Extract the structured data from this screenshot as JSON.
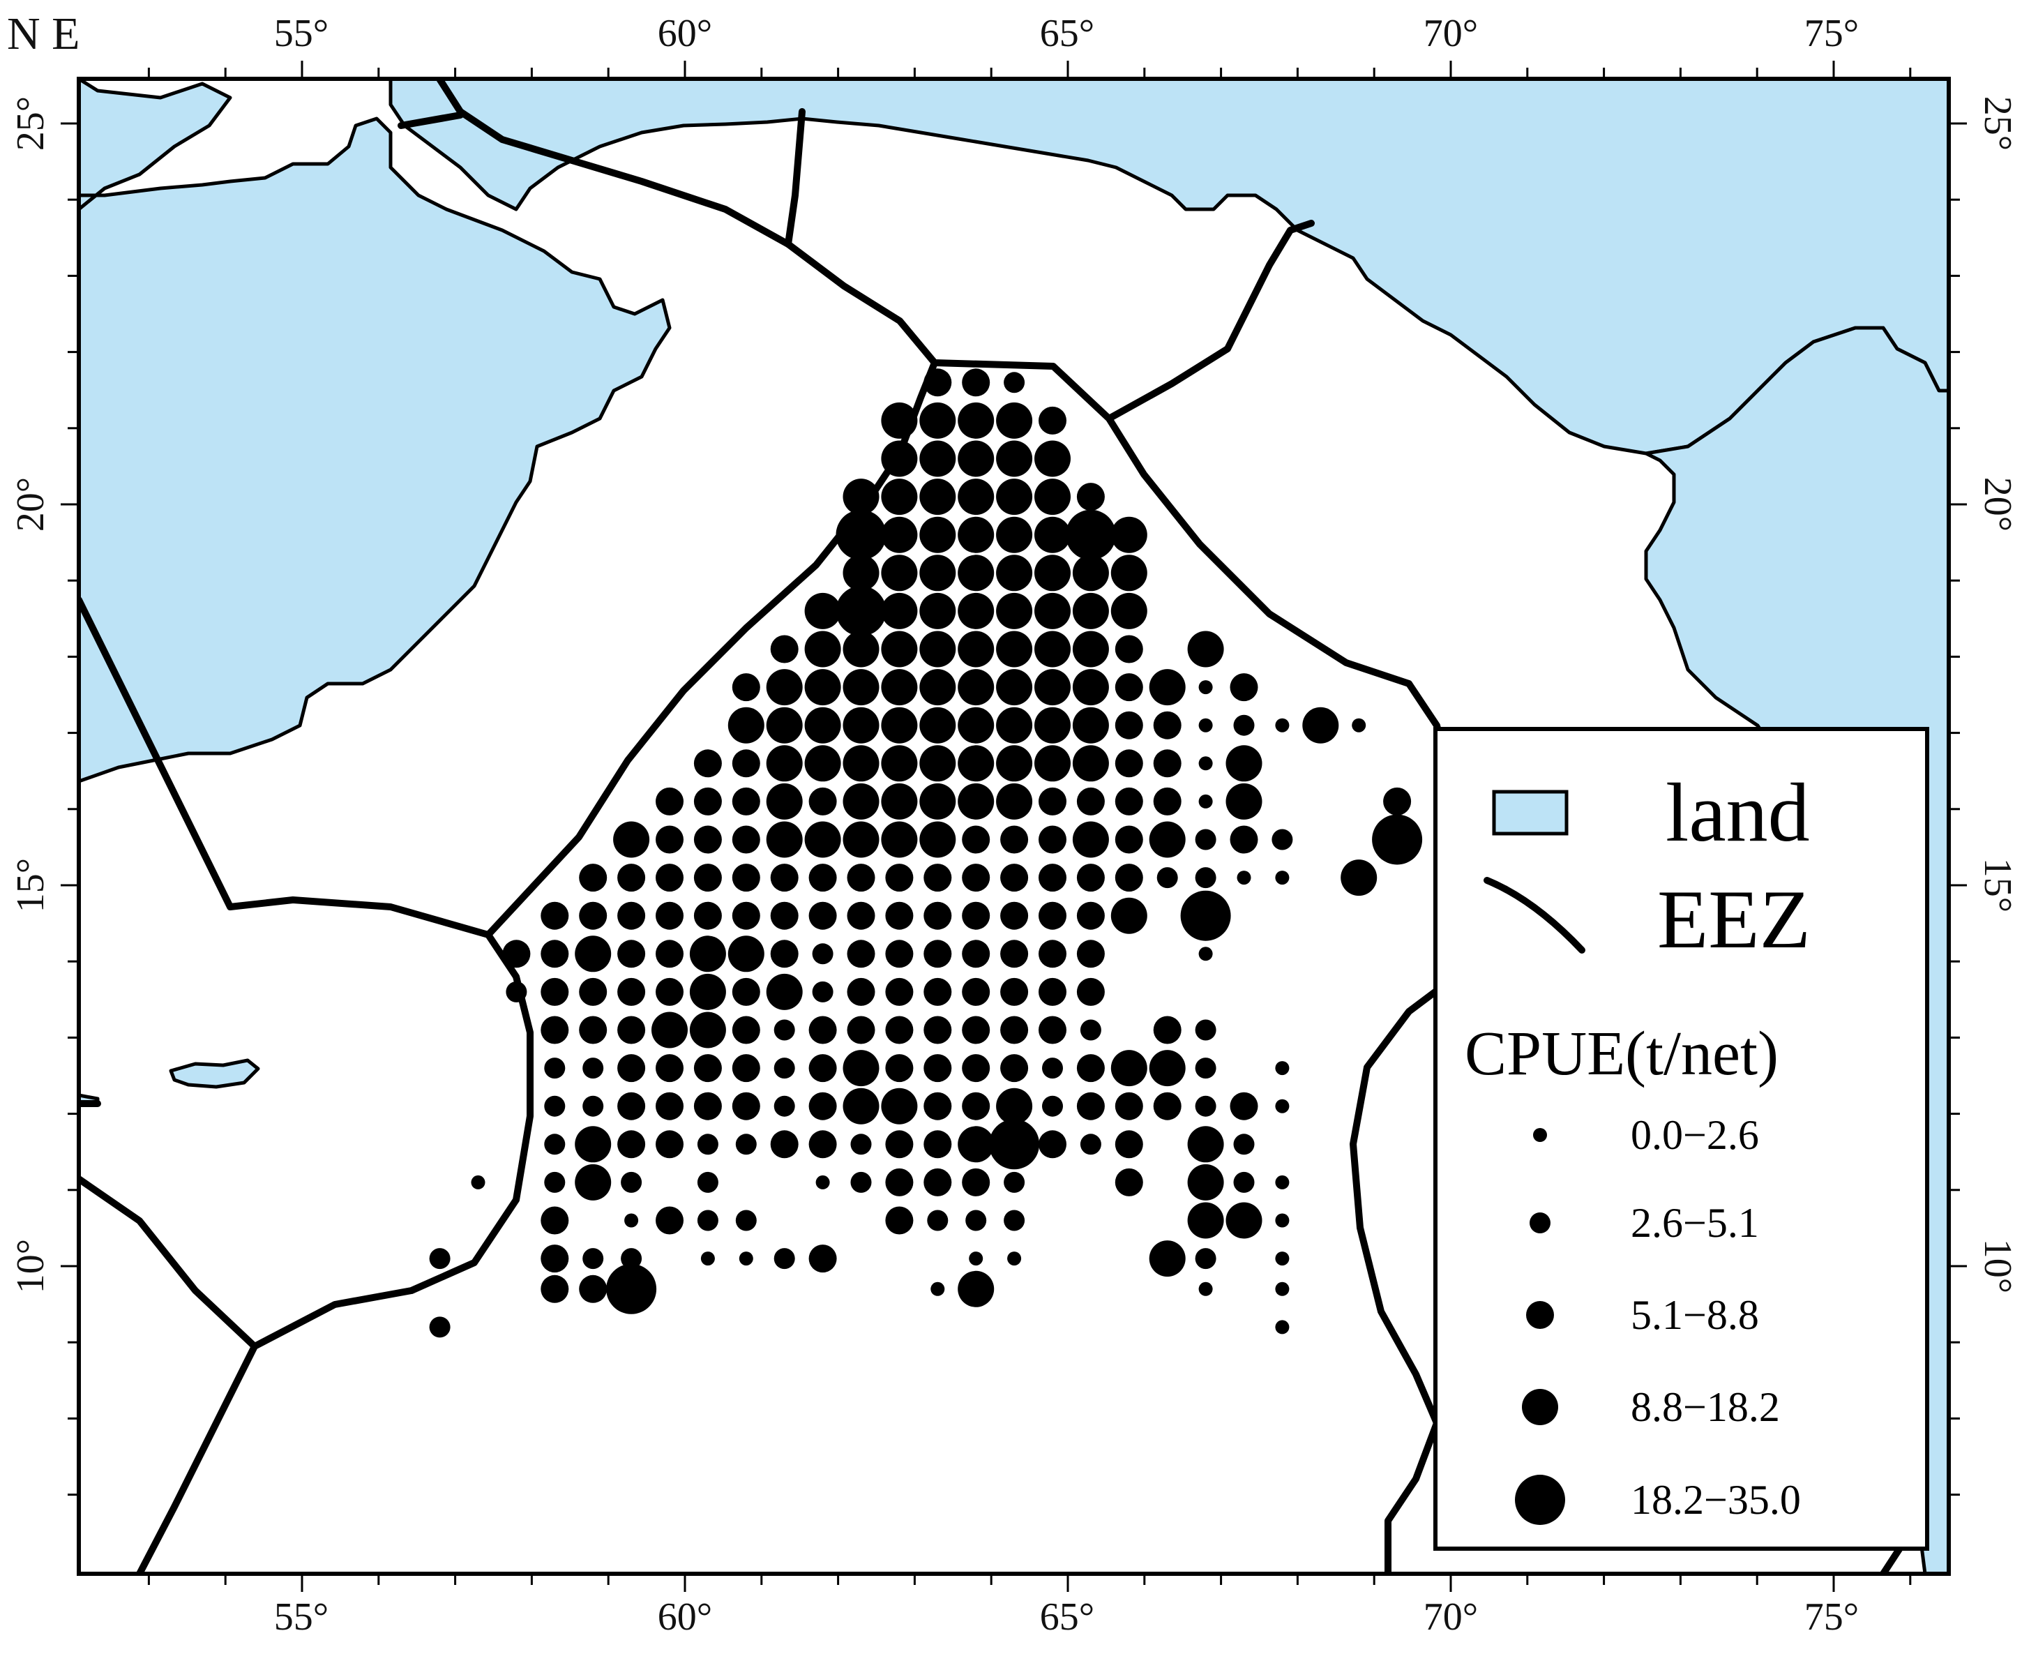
{
  "map": {
    "corner_label": "N E",
    "colors": {
      "land": "#bde3f6",
      "sea": "#ffffff",
      "eez_line": "#000000",
      "dots": "#000000"
    },
    "lon_ticks": [
      "55°",
      "60°",
      "65°",
      "70°",
      "75°"
    ],
    "lat_ticks": [
      "25°",
      "20°",
      "15°",
      "10°"
    ]
  },
  "legend": {
    "land_label": "land",
    "eez_label": "EEZ",
    "cpue_title": "CPUE(t/net)",
    "classes": [
      {
        "label": "0.0−2.6"
      },
      {
        "label": "2.6−5.1"
      },
      {
        "label": "5.1−8.8"
      },
      {
        "label": "8.8−18.2"
      },
      {
        "label": "18.2−35.0"
      }
    ]
  },
  "cpue_points": [
    [
      -2,
      21.6,
      3
    ],
    [
      -1,
      21.6,
      3
    ],
    [
      0,
      21.6,
      2
    ],
    [
      -3,
      21.1,
      4
    ],
    [
      -2,
      21.1,
      4
    ],
    [
      -1,
      21.1,
      4
    ],
    [
      0,
      21.1,
      4
    ],
    [
      1,
      21.1,
      3
    ],
    [
      -3,
      20.6,
      4
    ],
    [
      -2,
      20.6,
      4
    ],
    [
      -1,
      20.6,
      4
    ],
    [
      0,
      20.6,
      4
    ],
    [
      1,
      20.6,
      4
    ],
    [
      -4,
      20.1,
      4
    ],
    [
      -3,
      20.1,
      4
    ],
    [
      -2,
      20.1,
      4
    ],
    [
      -1,
      20.1,
      4
    ],
    [
      0,
      20.1,
      4
    ],
    [
      1,
      20.1,
      4
    ],
    [
      2,
      20.1,
      3
    ],
    [
      -4,
      19.6,
      5
    ],
    [
      -3,
      19.6,
      4
    ],
    [
      -2,
      19.6,
      4
    ],
    [
      -1,
      19.6,
      4
    ],
    [
      0,
      19.6,
      4
    ],
    [
      1,
      19.6,
      4
    ],
    [
      2,
      19.6,
      5
    ],
    [
      3,
      19.6,
      4
    ],
    [
      -4,
      19.1,
      4
    ],
    [
      -3,
      19.1,
      4
    ],
    [
      -2,
      19.1,
      4
    ],
    [
      -1,
      19.1,
      4
    ],
    [
      0,
      19.1,
      4
    ],
    [
      1,
      19.1,
      4
    ],
    [
      2,
      19.1,
      4
    ],
    [
      3,
      19.1,
      4
    ],
    [
      -5,
      18.6,
      4
    ],
    [
      -4,
      18.6,
      5
    ],
    [
      -3,
      18.6,
      4
    ],
    [
      -2,
      18.6,
      4
    ],
    [
      -1,
      18.6,
      4
    ],
    [
      0,
      18.6,
      4
    ],
    [
      1,
      18.6,
      4
    ],
    [
      2,
      18.6,
      4
    ],
    [
      3,
      18.6,
      4
    ],
    [
      -6,
      18.1,
      3
    ],
    [
      -5,
      18.1,
      4
    ],
    [
      -4,
      18.1,
      4
    ],
    [
      -3,
      18.1,
      4
    ],
    [
      -2,
      18.1,
      4
    ],
    [
      -1,
      18.1,
      4
    ],
    [
      0,
      18.1,
      4
    ],
    [
      1,
      18.1,
      4
    ],
    [
      2,
      18.1,
      4
    ],
    [
      3,
      18.1,
      3
    ],
    [
      5,
      18.1,
      4
    ],
    [
      -7,
      17.6,
      3
    ],
    [
      -6,
      17.6,
      4
    ],
    [
      -5,
      17.6,
      4
    ],
    [
      -4,
      17.6,
      4
    ],
    [
      -3,
      17.6,
      4
    ],
    [
      -2,
      17.6,
      4
    ],
    [
      -1,
      17.6,
      4
    ],
    [
      0,
      17.6,
      4
    ],
    [
      1,
      17.6,
      4
    ],
    [
      2,
      17.6,
      4
    ],
    [
      3,
      17.6,
      3
    ],
    [
      4,
      17.6,
      4
    ],
    [
      5,
      17.6,
      1
    ],
    [
      6,
      17.6,
      3
    ],
    [
      -7,
      17.1,
      4
    ],
    [
      -6,
      17.1,
      4
    ],
    [
      -5,
      17.1,
      4
    ],
    [
      -4,
      17.1,
      4
    ],
    [
      -3,
      17.1,
      4
    ],
    [
      -2,
      17.1,
      4
    ],
    [
      -1,
      17.1,
      4
    ],
    [
      0,
      17.1,
      4
    ],
    [
      1,
      17.1,
      4
    ],
    [
      2,
      17.1,
      4
    ],
    [
      3,
      17.1,
      3
    ],
    [
      4,
      17.1,
      3
    ],
    [
      5,
      17.1,
      1
    ],
    [
      6,
      17.1,
      2
    ],
    [
      7,
      17.1,
      1
    ],
    [
      8,
      17.1,
      4
    ],
    [
      9,
      17.1,
      1
    ],
    [
      -8,
      16.6,
      3
    ],
    [
      -7,
      16.6,
      3
    ],
    [
      -6,
      16.6,
      4
    ],
    [
      -5,
      16.6,
      4
    ],
    [
      -4,
      16.6,
      4
    ],
    [
      -3,
      16.6,
      4
    ],
    [
      -2,
      16.6,
      4
    ],
    [
      -1,
      16.6,
      4
    ],
    [
      0,
      16.6,
      4
    ],
    [
      1,
      16.6,
      4
    ],
    [
      2,
      16.6,
      4
    ],
    [
      3,
      16.6,
      3
    ],
    [
      4,
      16.6,
      3
    ],
    [
      5,
      16.6,
      1
    ],
    [
      6,
      16.6,
      4
    ],
    [
      -9,
      16.1,
      3
    ],
    [
      -8,
      16.1,
      3
    ],
    [
      -7,
      16.1,
      3
    ],
    [
      -6,
      16.1,
      4
    ],
    [
      -5,
      16.1,
      3
    ],
    [
      -4,
      16.1,
      4
    ],
    [
      -3,
      16.1,
      4
    ],
    [
      -2,
      16.1,
      4
    ],
    [
      -1,
      16.1,
      4
    ],
    [
      0,
      16.1,
      4
    ],
    [
      1,
      16.1,
      3
    ],
    [
      2,
      16.1,
      3
    ],
    [
      3,
      16.1,
      3
    ],
    [
      4,
      16.1,
      3
    ],
    [
      5,
      16.1,
      1
    ],
    [
      6,
      16.1,
      4
    ],
    [
      10,
      16.1,
      3
    ],
    [
      -10,
      15.6,
      4
    ],
    [
      -9,
      15.6,
      3
    ],
    [
      -8,
      15.6,
      3
    ],
    [
      -7,
      15.6,
      3
    ],
    [
      -6,
      15.6,
      4
    ],
    [
      -5,
      15.6,
      4
    ],
    [
      -4,
      15.6,
      4
    ],
    [
      -3,
      15.6,
      4
    ],
    [
      -2,
      15.6,
      4
    ],
    [
      -1,
      15.6,
      3
    ],
    [
      0,
      15.6,
      3
    ],
    [
      1,
      15.6,
      3
    ],
    [
      2,
      15.6,
      4
    ],
    [
      3,
      15.6,
      3
    ],
    [
      4,
      15.6,
      4
    ],
    [
      5,
      15.6,
      2
    ],
    [
      6,
      15.6,
      3
    ],
    [
      7,
      15.6,
      2
    ],
    [
      10,
      15.6,
      5
    ],
    [
      -11,
      15.1,
      3
    ],
    [
      -10,
      15.1,
      3
    ],
    [
      -9,
      15.1,
      3
    ],
    [
      -8,
      15.1,
      3
    ],
    [
      -7,
      15.1,
      3
    ],
    [
      -6,
      15.1,
      3
    ],
    [
      -5,
      15.1,
      3
    ],
    [
      -4,
      15.1,
      3
    ],
    [
      -3,
      15.1,
      3
    ],
    [
      -2,
      15.1,
      3
    ],
    [
      -1,
      15.1,
      3
    ],
    [
      0,
      15.1,
      3
    ],
    [
      1,
      15.1,
      3
    ],
    [
      2,
      15.1,
      3
    ],
    [
      3,
      15.1,
      3
    ],
    [
      4,
      15.1,
      2
    ],
    [
      5,
      15.1,
      2
    ],
    [
      6,
      15.1,
      1
    ],
    [
      7,
      15.1,
      1
    ],
    [
      9,
      15.1,
      4
    ],
    [
      -12,
      14.6,
      3
    ],
    [
      -11,
      14.6,
      3
    ],
    [
      -10,
      14.6,
      3
    ],
    [
      -9,
      14.6,
      3
    ],
    [
      -8,
      14.6,
      3
    ],
    [
      -7,
      14.6,
      3
    ],
    [
      -6,
      14.6,
      3
    ],
    [
      -5,
      14.6,
      3
    ],
    [
      -4,
      14.6,
      3
    ],
    [
      -3,
      14.6,
      3
    ],
    [
      -2,
      14.6,
      3
    ],
    [
      -1,
      14.6,
      3
    ],
    [
      0,
      14.6,
      3
    ],
    [
      1,
      14.6,
      3
    ],
    [
      2,
      14.6,
      3
    ],
    [
      3,
      14.6,
      4
    ],
    [
      5,
      14.6,
      5
    ],
    [
      -13,
      14.1,
      3
    ],
    [
      -12,
      14.1,
      3
    ],
    [
      -11,
      14.1,
      4
    ],
    [
      -10,
      14.1,
      3
    ],
    [
      -9,
      14.1,
      3
    ],
    [
      -8,
      14.1,
      4
    ],
    [
      -7,
      14.1,
      4
    ],
    [
      -6,
      14.1,
      3
    ],
    [
      -5,
      14.1,
      2
    ],
    [
      -4,
      14.1,
      3
    ],
    [
      -3,
      14.1,
      3
    ],
    [
      -2,
      14.1,
      3
    ],
    [
      -1,
      14.1,
      3
    ],
    [
      0,
      14.1,
      3
    ],
    [
      1,
      14.1,
      3
    ],
    [
      2,
      14.1,
      3
    ],
    [
      5,
      14.1,
      1
    ],
    [
      -13,
      13.6,
      2
    ],
    [
      -12,
      13.6,
      3
    ],
    [
      -11,
      13.6,
      3
    ],
    [
      -10,
      13.6,
      3
    ],
    [
      -9,
      13.6,
      3
    ],
    [
      -8,
      13.6,
      4
    ],
    [
      -7,
      13.6,
      3
    ],
    [
      -6,
      13.6,
      4
    ],
    [
      -5,
      13.6,
      2
    ],
    [
      -4,
      13.6,
      3
    ],
    [
      -3,
      13.6,
      3
    ],
    [
      -2,
      13.6,
      3
    ],
    [
      -1,
      13.6,
      3
    ],
    [
      0,
      13.6,
      3
    ],
    [
      1,
      13.6,
      3
    ],
    [
      2,
      13.6,
      3
    ],
    [
      -12,
      13.1,
      3
    ],
    [
      -11,
      13.1,
      3
    ],
    [
      -10,
      13.1,
      3
    ],
    [
      -9,
      13.1,
      4
    ],
    [
      -8,
      13.1,
      4
    ],
    [
      -7,
      13.1,
      3
    ],
    [
      -6,
      13.1,
      2
    ],
    [
      -5,
      13.1,
      3
    ],
    [
      -4,
      13.1,
      3
    ],
    [
      -3,
      13.1,
      3
    ],
    [
      -2,
      13.1,
      3
    ],
    [
      -1,
      13.1,
      3
    ],
    [
      0,
      13.1,
      3
    ],
    [
      1,
      13.1,
      3
    ],
    [
      2,
      13.1,
      2
    ],
    [
      4,
      13.1,
      3
    ],
    [
      5,
      13.1,
      2
    ],
    [
      -12,
      12.6,
      2
    ],
    [
      -11,
      12.6,
      2
    ],
    [
      -10,
      12.6,
      3
    ],
    [
      -9,
      12.6,
      3
    ],
    [
      -8,
      12.6,
      3
    ],
    [
      -7,
      12.6,
      3
    ],
    [
      -6,
      12.6,
      2
    ],
    [
      -5,
      12.6,
      3
    ],
    [
      -4,
      12.6,
      4
    ],
    [
      -3,
      12.6,
      3
    ],
    [
      -2,
      12.6,
      3
    ],
    [
      -1,
      12.6,
      3
    ],
    [
      0,
      12.6,
      3
    ],
    [
      1,
      12.6,
      2
    ],
    [
      2,
      12.6,
      3
    ],
    [
      3,
      12.6,
      4
    ],
    [
      4,
      12.6,
      4
    ],
    [
      5,
      12.6,
      2
    ],
    [
      7,
      12.6,
      1
    ],
    [
      -12,
      12.1,
      2
    ],
    [
      -11,
      12.1,
      2
    ],
    [
      -10,
      12.1,
      3
    ],
    [
      -9,
      12.1,
      3
    ],
    [
      -8,
      12.1,
      3
    ],
    [
      -7,
      12.1,
      3
    ],
    [
      -6,
      12.1,
      2
    ],
    [
      -5,
      12.1,
      3
    ],
    [
      -4,
      12.1,
      4
    ],
    [
      -3,
      12.1,
      4
    ],
    [
      -2,
      12.1,
      3
    ],
    [
      -1,
      12.1,
      3
    ],
    [
      0,
      12.1,
      4
    ],
    [
      1,
      12.1,
      2
    ],
    [
      2,
      12.1,
      3
    ],
    [
      3,
      12.1,
      3
    ],
    [
      4,
      12.1,
      3
    ],
    [
      5,
      12.1,
      2
    ],
    [
      6,
      12.1,
      3
    ],
    [
      7,
      12.1,
      1
    ],
    [
      -12,
      11.6,
      2
    ],
    [
      -11,
      11.6,
      4
    ],
    [
      -10,
      11.6,
      3
    ],
    [
      -9,
      11.6,
      3
    ],
    [
      -8,
      11.6,
      2
    ],
    [
      -7,
      11.6,
      2
    ],
    [
      -6,
      11.6,
      3
    ],
    [
      -5,
      11.6,
      3
    ],
    [
      -4,
      11.6,
      2
    ],
    [
      -3,
      11.6,
      3
    ],
    [
      -2,
      11.6,
      3
    ],
    [
      -1,
      11.6,
      4
    ],
    [
      0,
      11.6,
      5
    ],
    [
      1,
      11.6,
      3
    ],
    [
      2,
      11.6,
      2
    ],
    [
      3,
      11.6,
      3
    ],
    [
      5,
      11.6,
      4
    ],
    [
      6,
      11.6,
      2
    ],
    [
      -14,
      11.1,
      1
    ],
    [
      -12,
      11.1,
      2
    ],
    [
      -11,
      11.1,
      4
    ],
    [
      -10,
      11.1,
      2
    ],
    [
      -8,
      11.1,
      2
    ],
    [
      -5,
      11.1,
      1
    ],
    [
      -4,
      11.1,
      2
    ],
    [
      -3,
      11.1,
      3
    ],
    [
      -2,
      11.1,
      3
    ],
    [
      -1,
      11.1,
      3
    ],
    [
      0,
      11.1,
      2
    ],
    [
      3,
      11.1,
      3
    ],
    [
      5,
      11.1,
      4
    ],
    [
      6,
      11.1,
      2
    ],
    [
      7,
      11.1,
      1
    ],
    [
      -12,
      10.6,
      3
    ],
    [
      -10,
      10.6,
      1
    ],
    [
      -9,
      10.6,
      3
    ],
    [
      -8,
      10.6,
      2
    ],
    [
      -7,
      10.6,
      2
    ],
    [
      -3,
      10.6,
      3
    ],
    [
      -2,
      10.6,
      2
    ],
    [
      -1,
      10.6,
      2
    ],
    [
      0,
      10.6,
      2
    ],
    [
      5,
      10.6,
      4
    ],
    [
      6,
      10.6,
      4
    ],
    [
      7,
      10.6,
      1
    ],
    [
      -15,
      10.1,
      2
    ],
    [
      -12,
      10.1,
      3
    ],
    [
      -11,
      10.1,
      2
    ],
    [
      -10,
      10.1,
      2
    ],
    [
      -8,
      10.1,
      1
    ],
    [
      -7,
      10.1,
      1
    ],
    [
      -6,
      10.1,
      2
    ],
    [
      -5,
      10.1,
      3
    ],
    [
      -1,
      10.1,
      1
    ],
    [
      0,
      10.1,
      1
    ],
    [
      4,
      10.1,
      4
    ],
    [
      5,
      10.1,
      2
    ],
    [
      7,
      10.1,
      1
    ],
    [
      -12,
      9.7,
      3
    ],
    [
      -11,
      9.7,
      3
    ],
    [
      -10,
      9.7,
      5
    ],
    [
      -2,
      9.7,
      1
    ],
    [
      -1,
      9.7,
      4
    ],
    [
      5,
      9.7,
      1
    ],
    [
      7,
      9.7,
      1
    ],
    [
      -15,
      9.2,
      2
    ],
    [
      7,
      9.2,
      1
    ]
  ]
}
